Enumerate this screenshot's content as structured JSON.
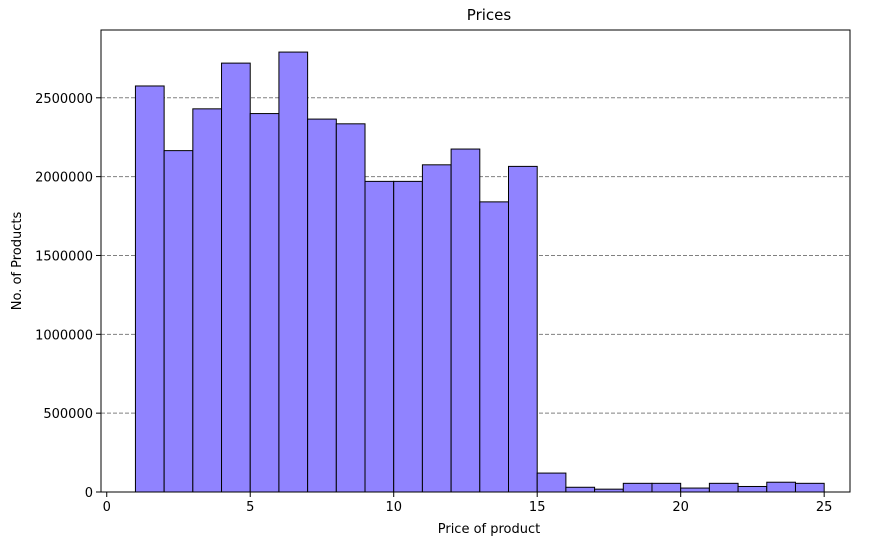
{
  "chart_data": {
    "type": "bar",
    "title": "Prices",
    "xlabel": "Price of product",
    "ylabel": "No. of Products",
    "xlim": [
      -0.2,
      25.9
    ],
    "ylim": [
      0,
      2930000
    ],
    "xticks": [
      0,
      5,
      10,
      15,
      20,
      25
    ],
    "yticks": [
      0,
      500000,
      1000000,
      1500000,
      2000000,
      2500000
    ],
    "grid": {
      "axis": "y",
      "style": "dashed"
    },
    "bar_color": "#9083ff",
    "edge_color": "#000000",
    "bins": [
      {
        "start": 1,
        "end": 2,
        "value": 2575000
      },
      {
        "start": 2,
        "end": 3,
        "value": 2165000
      },
      {
        "start": 3,
        "end": 4,
        "value": 2430000
      },
      {
        "start": 4,
        "end": 5,
        "value": 2720000
      },
      {
        "start": 5,
        "end": 6,
        "value": 2400000
      },
      {
        "start": 6,
        "end": 7,
        "value": 2790000
      },
      {
        "start": 7,
        "end": 8,
        "value": 2365000
      },
      {
        "start": 8,
        "end": 9,
        "value": 2335000
      },
      {
        "start": 9,
        "end": 10,
        "value": 1970000
      },
      {
        "start": 10,
        "end": 11,
        "value": 1970000
      },
      {
        "start": 11,
        "end": 12,
        "value": 2075000
      },
      {
        "start": 12,
        "end": 13,
        "value": 2175000
      },
      {
        "start": 13,
        "end": 14,
        "value": 1840000
      },
      {
        "start": 14,
        "end": 15,
        "value": 2065000
      },
      {
        "start": 15,
        "end": 16,
        "value": 120000
      },
      {
        "start": 16,
        "end": 17,
        "value": 30000
      },
      {
        "start": 17,
        "end": 18,
        "value": 18000
      },
      {
        "start": 18,
        "end": 19,
        "value": 55000
      },
      {
        "start": 19,
        "end": 20,
        "value": 55000
      },
      {
        "start": 20,
        "end": 21,
        "value": 25000
      },
      {
        "start": 21,
        "end": 22,
        "value": 55000
      },
      {
        "start": 22,
        "end": 23,
        "value": 35000
      },
      {
        "start": 23,
        "end": 24,
        "value": 62000
      },
      {
        "start": 24,
        "end": 25,
        "value": 55000
      }
    ]
  }
}
